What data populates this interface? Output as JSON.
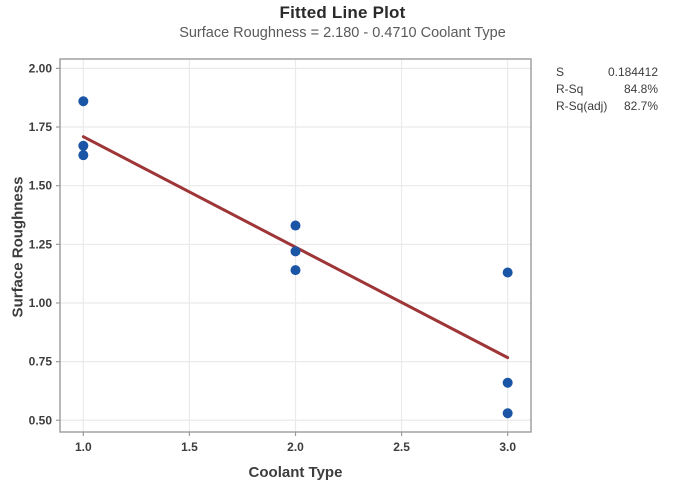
{
  "header": {
    "title": "Fitted Line Plot",
    "subtitle": "Surface Roughness = 2.180 - 0.4710 Coolant Type"
  },
  "stats": {
    "rows": [
      {
        "label": "S",
        "value": "0.184412"
      },
      {
        "label": "R-Sq",
        "value": "84.8%"
      },
      {
        "label": "R-Sq(adj)",
        "value": "82.7%"
      }
    ]
  },
  "chart_data": {
    "type": "scatter",
    "title": "Fitted Line Plot",
    "subtitle": "Surface Roughness = 2.180 - 0.4710 Coolant Type",
    "xlabel": "Coolant Type",
    "ylabel": "Surface Roughness",
    "xlim": [
      0.89,
      3.11
    ],
    "ylim": [
      0.45,
      2.04
    ],
    "grid": true,
    "legend_position": "none",
    "x_ticks": [
      1.0,
      1.5,
      2.0,
      2.5,
      3.0
    ],
    "x_tick_labels": [
      "1.0",
      "1.5",
      "2.0",
      "2.5",
      "3.0"
    ],
    "y_ticks": [
      0.5,
      0.75,
      1.0,
      1.25,
      1.5,
      1.75,
      2.0
    ],
    "y_tick_labels": [
      "0.50",
      "0.75",
      "1.00",
      "1.25",
      "1.50",
      "1.75",
      "2.00"
    ],
    "points": [
      {
        "x": 1,
        "y": 1.86
      },
      {
        "x": 1,
        "y": 1.67
      },
      {
        "x": 1,
        "y": 1.63
      },
      {
        "x": 2,
        "y": 1.33
      },
      {
        "x": 2,
        "y": 1.22
      },
      {
        "x": 2,
        "y": 1.14
      },
      {
        "x": 3,
        "y": 1.13
      },
      {
        "x": 3,
        "y": 0.66
      },
      {
        "x": 3,
        "y": 0.53
      }
    ],
    "fit_line": {
      "intercept": 2.18,
      "slope": -0.471,
      "x_start": 1.0,
      "x_end": 3.0
    },
    "colors": {
      "point": "#1b55a5",
      "fit_line": "#9e3537",
      "grid": "#eaeaea",
      "frame": "#9b9b9b"
    }
  }
}
